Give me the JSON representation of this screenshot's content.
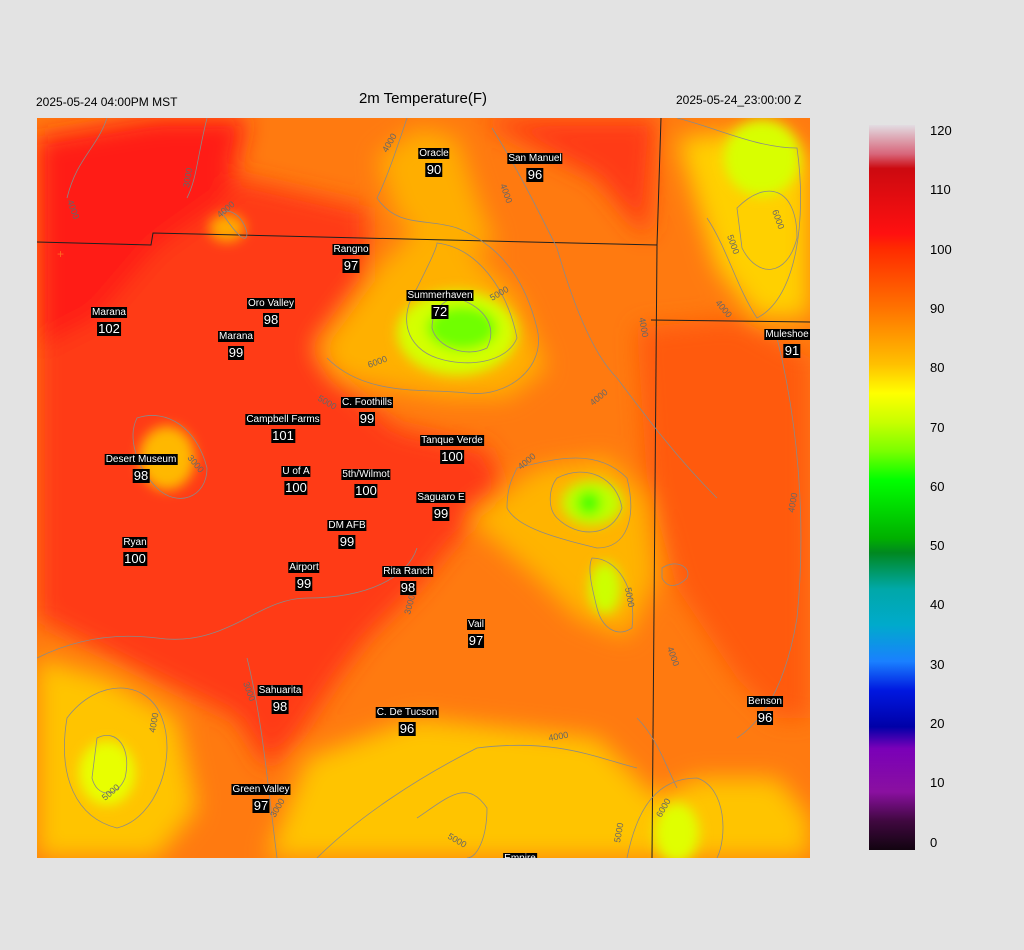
{
  "header": {
    "title": "2m Temperature(F)",
    "valid_local": "2025-05-24 04:00PM MST",
    "valid_utc": "2025-05-24_23:00:00 Z"
  },
  "colorbar": {
    "ticks": [
      "120",
      "110",
      "100",
      "90",
      "80",
      "70",
      "60",
      "50",
      "40",
      "30",
      "20",
      "10",
      "0"
    ],
    "range": [
      0,
      120
    ],
    "stops": [
      "#ddd4dc",
      "#d6223a",
      "#ff2a00",
      "#ff8a00",
      "#ffd000",
      "#c8ff00",
      "#00ff00",
      "#008c00",
      "#00aaaa",
      "#1c8cff",
      "#0000d0",
      "#8a00b8",
      "#180818"
    ]
  },
  "contour_labels": [
    "4000",
    "5000",
    "6000",
    "3000"
  ],
  "stations": [
    {
      "name": "Oracle",
      "value": "90"
    },
    {
      "name": "San Manuel",
      "value": "96"
    },
    {
      "name": "Rangno",
      "value": "97"
    },
    {
      "name": "Summerhaven",
      "value": "72"
    },
    {
      "name": "Oro Valley",
      "value": "98"
    },
    {
      "name": "Marana",
      "value": "102"
    },
    {
      "name": "Marana",
      "value": "99"
    },
    {
      "name": "Muleshoe R",
      "value": "91"
    },
    {
      "name": "C. Foothills",
      "value": "99"
    },
    {
      "name": "Campbell Farms",
      "value": "101"
    },
    {
      "name": "Tanque Verde",
      "value": "100"
    },
    {
      "name": "Desert Museum",
      "value": "98"
    },
    {
      "name": "U of A",
      "value": "100"
    },
    {
      "name": "5th/Wilmot",
      "value": "100"
    },
    {
      "name": "Saguaro E",
      "value": "99"
    },
    {
      "name": "DM AFB",
      "value": "99"
    },
    {
      "name": "Ryan",
      "value": "100"
    },
    {
      "name": "Airport",
      "value": "99"
    },
    {
      "name": "Rita Ranch",
      "value": "98"
    },
    {
      "name": "Vail",
      "value": "97"
    },
    {
      "name": "Sahuarita",
      "value": "98"
    },
    {
      "name": "C. De Tucson",
      "value": "96"
    },
    {
      "name": "Benson",
      "value": "96"
    },
    {
      "name": "Green Valley",
      "value": "97"
    },
    {
      "name": "Empire",
      "value": ""
    }
  ]
}
